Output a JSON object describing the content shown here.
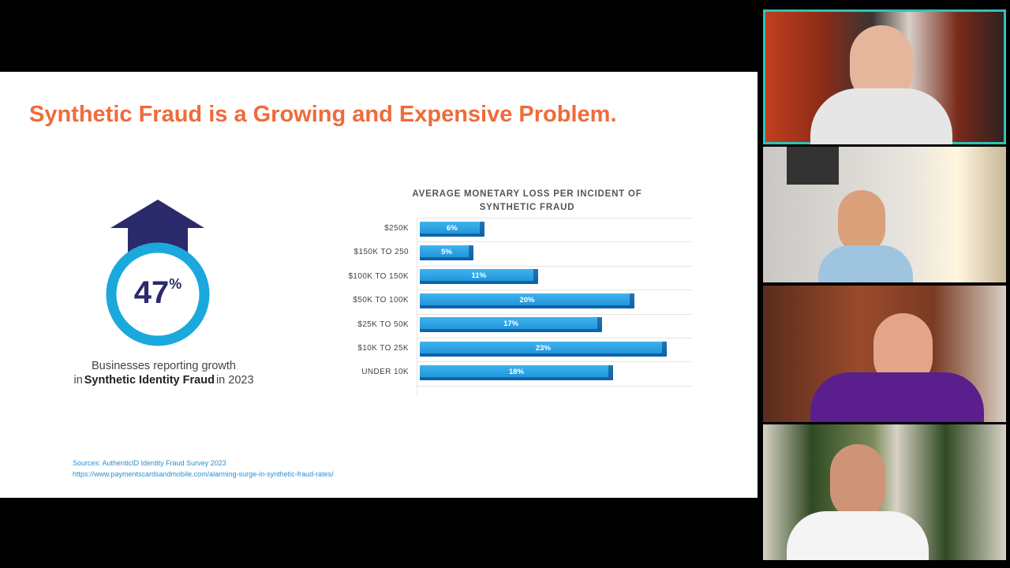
{
  "slide": {
    "title": "Synthetic Fraud is a Growing and Expensive Problem.",
    "stat": {
      "value": "47",
      "unit": "%"
    },
    "caption": [
      "Businesses reporting growth",
      "in",
      "Synthetic Identity Fraud",
      "in 2023"
    ],
    "sources": [
      "Sources: AuthenticID Identity Fraud Survey 2023",
      "https://www.paymentscardsandmobile.com/alarming-surge-in-synthetic-fraud-rates/"
    ]
  },
  "chart_data": {
    "type": "bar",
    "orientation": "horizontal",
    "title": "AVERAGE MONETARY LOSS PER INCIDENT OF SYNTHETIC FRAUD",
    "categories": [
      "$250K",
      "$150K TO 250",
      "$100K TO 150K",
      "$50K TO 100K",
      "$25K TO 50K",
      "$10K TO 25K",
      "UNDER 10K"
    ],
    "values": [
      6,
      5,
      11,
      20,
      17,
      23,
      18
    ],
    "value_labels": [
      "6%",
      "5%",
      "11%",
      "20%",
      "17%",
      "23%",
      "18%"
    ],
    "color": "#1a8fd6"
  }
}
